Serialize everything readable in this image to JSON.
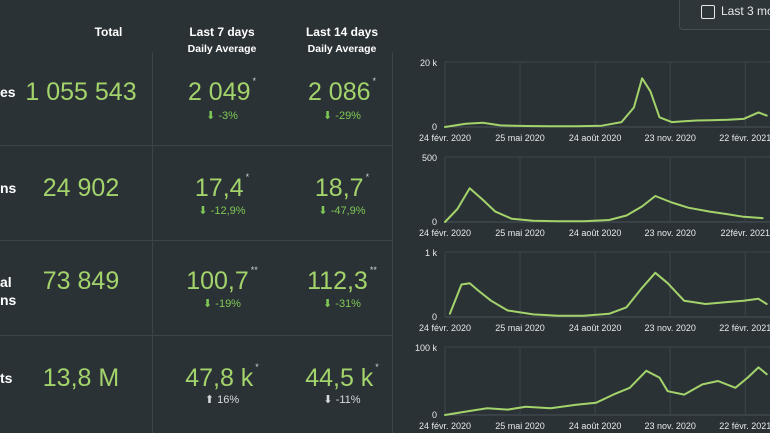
{
  "header": {
    "total": "Total",
    "last7": "Last 7 days",
    "last7_sub": "Daily Average",
    "last14": "Last 14 days",
    "last14_sub": "Daily Average"
  },
  "range_toggle": {
    "label": "Last 3 mo",
    "checked": false
  },
  "rows": [
    {
      "label_lines": [
        "es",
        ""
      ],
      "total": "1 055 543",
      "avg7": "2 049",
      "avg7_mark": "*",
      "chg7": "⬇ -3%",
      "avg14": "2 086",
      "avg14_mark": "*",
      "chg14": "⬇ -29%"
    },
    {
      "label_lines": [
        "ns",
        ""
      ],
      "total": "24 902",
      "avg7": "17,4",
      "avg7_mark": "*",
      "chg7": "⬇ -12,9%",
      "avg14": "18,7",
      "avg14_mark": "*",
      "chg14": "⬇ -47,9%"
    },
    {
      "label_lines": [
        "al",
        "ns"
      ],
      "total": "73 849",
      "avg7": "100,7",
      "avg7_mark": "**",
      "chg7": "⬇ -19%",
      "avg14": "112,3",
      "avg14_mark": "**",
      "chg14": "⬇ -31%"
    },
    {
      "label_lines": [
        "ts",
        ""
      ],
      "total": "13,8 M",
      "avg7": "47,8 k",
      "avg7_mark": "*",
      "chg7": "⬆ 16%",
      "avg14": "44,5 k",
      "avg14_mark": "*",
      "chg14": "⬇ -11%"
    }
  ],
  "colors": {
    "accent": "#a3d36b",
    "good": "#7ec855",
    "background": "#2b3236"
  },
  "chart_data": [
    {
      "type": "line",
      "ylim": [
        0,
        20000
      ],
      "ytick_labels": [
        "20 k",
        "0"
      ],
      "xtick_labels": [
        "24 févr. 2020",
        "25 mai 2020",
        "24 août 2020",
        "23 nov. 2020",
        "22 févr. 2021"
      ],
      "x": [
        "2020-02-24",
        "2020-03-20",
        "2020-04-10",
        "2020-05-01",
        "2020-06-01",
        "2020-07-01",
        "2020-08-01",
        "2020-09-01",
        "2020-09-25",
        "2020-10-10",
        "2020-10-20",
        "2020-10-30",
        "2020-11-10",
        "2020-11-25",
        "2020-12-10",
        "2020-12-25",
        "2021-01-10",
        "2021-02-01",
        "2021-02-20",
        "2021-03-10",
        "2021-03-20"
      ],
      "series": [
        {
          "values": [
            0,
            1000,
            1300,
            500,
            300,
            200,
            200,
            400,
            1500,
            6000,
            15000,
            11000,
            3000,
            1500,
            1800,
            2000,
            2100,
            2200,
            2500,
            4500,
            3500
          ]
        }
      ]
    },
    {
      "type": "line",
      "ylim": [
        0,
        500
      ],
      "ytick_labels": [
        "500",
        "0"
      ],
      "xtick_labels": [
        "24 févr. 2020",
        "25 mai 2020",
        "24 août 2020",
        "23 nov. 2020",
        "22févr. 2021"
      ],
      "x": [
        "2020-02-24",
        "2020-03-10",
        "2020-03-25",
        "2020-04-10",
        "2020-04-25",
        "2020-05-15",
        "2020-06-10",
        "2020-07-10",
        "2020-08-10",
        "2020-09-10",
        "2020-10-01",
        "2020-10-20",
        "2020-11-05",
        "2020-11-25",
        "2020-12-15",
        "2021-01-10",
        "2021-02-01",
        "2021-02-20",
        "2021-03-15"
      ],
      "series": [
        {
          "values": [
            0,
            100,
            260,
            170,
            80,
            25,
            10,
            5,
            5,
            15,
            50,
            120,
            200,
            150,
            110,
            80,
            60,
            40,
            30
          ]
        }
      ]
    },
    {
      "type": "line",
      "ylim": [
        0,
        1000
      ],
      "ytick_labels": [
        "1 k",
        "0"
      ],
      "xtick_labels": [
        "24 févr. 2020",
        "25 mai 2020",
        "24 août 2020",
        "23 nov. 2020",
        "22 févr. 2021"
      ],
      "x": [
        "2020-03-01",
        "2020-03-15",
        "2020-03-25",
        "2020-04-05",
        "2020-04-20",
        "2020-05-10",
        "2020-06-10",
        "2020-07-10",
        "2020-08-10",
        "2020-09-10",
        "2020-10-01",
        "2020-10-20",
        "2020-11-05",
        "2020-11-20",
        "2020-12-10",
        "2021-01-05",
        "2021-02-01",
        "2021-02-20",
        "2021-03-10",
        "2021-03-20"
      ],
      "series": [
        {
          "values": [
            50,
            500,
            520,
            400,
            250,
            100,
            40,
            20,
            20,
            50,
            150,
            450,
            680,
            520,
            250,
            200,
            230,
            250,
            280,
            200
          ]
        }
      ]
    },
    {
      "type": "line",
      "ylim": [
        0,
        100000
      ],
      "ytick_labels": [
        "100 k",
        "0"
      ],
      "xtick_labels": [
        "24 févr. 2020",
        "25 mai 2020",
        "24 août 2020",
        "23 nov. 2020",
        "22 févr. 2021"
      ],
      "x": [
        "2020-02-24",
        "2020-03-20",
        "2020-04-15",
        "2020-05-10",
        "2020-06-01",
        "2020-07-01",
        "2020-08-01",
        "2020-08-25",
        "2020-09-15",
        "2020-10-05",
        "2020-10-25",
        "2020-11-10",
        "2020-11-20",
        "2020-12-10",
        "2021-01-01",
        "2021-01-20",
        "2021-02-10",
        "2021-02-25",
        "2021-03-10",
        "2021-03-20"
      ],
      "series": [
        {
          "values": [
            0,
            5000,
            10000,
            8000,
            12000,
            10000,
            15000,
            18000,
            30000,
            40000,
            65000,
            55000,
            35000,
            30000,
            45000,
            50000,
            40000,
            55000,
            70000,
            60000
          ]
        }
      ]
    }
  ]
}
